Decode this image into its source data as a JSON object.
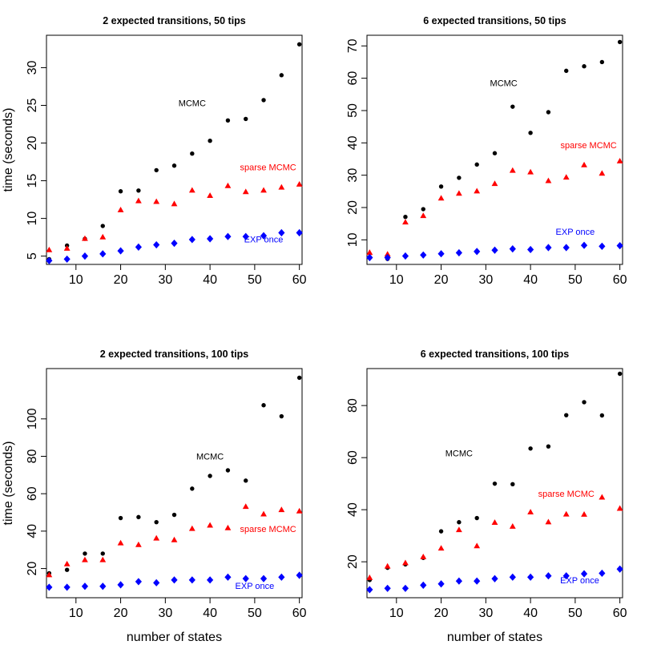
{
  "chart_data": [
    {
      "type": "scatter",
      "title": "2 expected transitions, 50 tips",
      "xlabel": "",
      "ylabel": "time (seconds)",
      "xlim": [
        3.4,
        60.6
      ],
      "ylim": [
        3.9,
        34.3
      ],
      "xticks": [
        10,
        20,
        30,
        40,
        50,
        60
      ],
      "yticks": [
        5,
        10,
        15,
        20,
        25,
        30
      ],
      "x": [
        4,
        8,
        12,
        16,
        20,
        24,
        28,
        32,
        36,
        40,
        44,
        48,
        52,
        56,
        60
      ],
      "series": [
        {
          "label": "MCMC",
          "marker": "circle",
          "color": "#000000",
          "label_pos": [
            36,
            24.9
          ],
          "values": [
            4.6,
            6.4,
            7.3,
            9.0,
            13.6,
            13.7,
            16.4,
            17.0,
            18.6,
            20.3,
            23.0,
            23.2,
            25.7,
            29.0,
            33.1
          ]
        },
        {
          "label": "sparse MCMC",
          "marker": "triangle",
          "color": "#ff0000",
          "label_pos": [
            53,
            16.4
          ],
          "values": [
            5.8,
            6.0,
            7.3,
            7.5,
            11.1,
            12.3,
            12.2,
            11.9,
            13.7,
            13.0,
            14.3,
            13.5,
            13.7,
            14.1,
            14.5
          ]
        },
        {
          "label": "EXP once",
          "marker": "diamond",
          "color": "#0000ff",
          "label_pos": [
            52,
            6.8
          ],
          "values": [
            4.4,
            4.6,
            5.0,
            5.3,
            5.7,
            6.2,
            6.5,
            6.7,
            7.2,
            7.3,
            7.6,
            7.6,
            7.7,
            8.1,
            8.1
          ]
        }
      ]
    },
    {
      "type": "scatter",
      "title": "6 expected transitions, 50 tips",
      "xlabel": "",
      "ylabel": "",
      "xlim": [
        3.4,
        60.6
      ],
      "ylim": [
        2.4,
        73.3
      ],
      "xticks": [
        10,
        20,
        30,
        40,
        50,
        60
      ],
      "yticks": [
        10,
        20,
        30,
        40,
        50,
        60,
        70
      ],
      "x": [
        4,
        8,
        12,
        16,
        20,
        24,
        28,
        32,
        36,
        40,
        44,
        48,
        52,
        56,
        60
      ],
      "series": [
        {
          "label": "MCMC",
          "marker": "circle",
          "color": "#000000",
          "label_pos": [
            34,
            57.5
          ],
          "values": [
            4.7,
            4.1,
            17.1,
            19.5,
            26.5,
            29.2,
            33.3,
            36.8,
            51.2,
            43.1,
            49.5,
            62.3,
            63.7,
            65.0,
            71.2
          ]
        },
        {
          "label": "sparse MCMC",
          "marker": "triangle",
          "color": "#ff0000",
          "label_pos": [
            53,
            38.3
          ],
          "values": [
            6.0,
            5.5,
            15.4,
            17.4,
            22.8,
            24.3,
            25.0,
            27.3,
            31.4,
            30.9,
            28.2,
            29.3,
            33.1,
            30.5,
            34.3
          ]
        },
        {
          "label": "EXP once",
          "marker": "diamond",
          "color": "#0000ff",
          "label_pos": [
            50,
            11.6
          ],
          "values": [
            4.5,
            4.5,
            5.0,
            5.3,
            5.7,
            6.0,
            6.4,
            6.8,
            7.2,
            7.0,
            7.6,
            7.6,
            8.3,
            8.0,
            8.2
          ]
        }
      ]
    },
    {
      "type": "scatter",
      "title": "2 expected transitions, 100 tips",
      "xlabel": "number of states",
      "ylabel": "time (seconds)",
      "xlim": [
        3.4,
        60.6
      ],
      "ylim": [
        4.4,
        126.9
      ],
      "xticks": [
        10,
        20,
        30,
        40,
        50,
        60
      ],
      "yticks": [
        20,
        40,
        60,
        80,
        100
      ],
      "x": [
        4,
        8,
        12,
        16,
        20,
        24,
        28,
        32,
        36,
        40,
        44,
        48,
        52,
        56,
        60
      ],
      "series": [
        {
          "label": "MCMC",
          "marker": "circle",
          "color": "#000000",
          "label_pos": [
            40,
            78.2
          ],
          "values": [
            17.5,
            19.3,
            28.0,
            28.0,
            47.0,
            47.5,
            44.8,
            48.7,
            62.7,
            69.5,
            72.5,
            67.0,
            107.3,
            101.4,
            122.0
          ]
        },
        {
          "label": "sparse MCMC",
          "marker": "triangle",
          "color": "#ff0000",
          "label_pos": [
            53,
            39.5
          ],
          "values": [
            16.5,
            22.3,
            24.5,
            24.5,
            33.5,
            32.6,
            36.1,
            35.2,
            41.2,
            43.0,
            41.6,
            53.0,
            49.0,
            51.3,
            50.6
          ]
        },
        {
          "label": "EXP once",
          "marker": "diamond",
          "color": "#0000ff",
          "label_pos": [
            50,
            9.2
          ],
          "values": [
            10.0,
            10.0,
            10.5,
            10.5,
            11.3,
            13.0,
            12.4,
            13.9,
            13.9,
            13.9,
            15.4,
            14.6,
            14.6,
            15.4,
            16.4
          ]
        }
      ]
    },
    {
      "type": "scatter",
      "title": "6 expected transitions, 100 tips",
      "xlabel": "number of states",
      "ylabel": "",
      "xlim": [
        3.4,
        60.6
      ],
      "ylim": [
        6.2,
        94.2
      ],
      "xticks": [
        10,
        20,
        30,
        40,
        50,
        60
      ],
      "yticks": [
        20,
        40,
        60,
        80
      ],
      "x": [
        4,
        8,
        12,
        16,
        20,
        24,
        28,
        32,
        36,
        40,
        44,
        48,
        52,
        56,
        60
      ],
      "series": [
        {
          "label": "MCMC",
          "marker": "circle",
          "color": "#000000",
          "label_pos": [
            24,
            60.5
          ],
          "values": [
            13.0,
            17.7,
            19.0,
            21.5,
            31.7,
            35.2,
            36.8,
            50.0,
            49.8,
            63.5,
            64.3,
            76.3,
            81.3,
            76.2,
            92.2
          ]
        },
        {
          "label": "sparse MCMC",
          "marker": "triangle",
          "color": "#ff0000",
          "label_pos": [
            48,
            45.0
          ],
          "values": [
            13.8,
            18.2,
            19.5,
            21.8,
            25.1,
            32.2,
            26.0,
            35.0,
            33.5,
            39.0,
            35.2,
            38.2,
            38.1,
            44.7,
            40.4
          ]
        },
        {
          "label": "EXP once",
          "marker": "diamond",
          "color": "#0000ff",
          "label_pos": [
            51,
            11.7
          ],
          "values": [
            9.3,
            9.8,
            9.8,
            11.0,
            11.5,
            12.6,
            12.6,
            13.5,
            14.1,
            14.1,
            14.6,
            14.6,
            15.4,
            15.6,
            17.2
          ]
        }
      ]
    }
  ]
}
